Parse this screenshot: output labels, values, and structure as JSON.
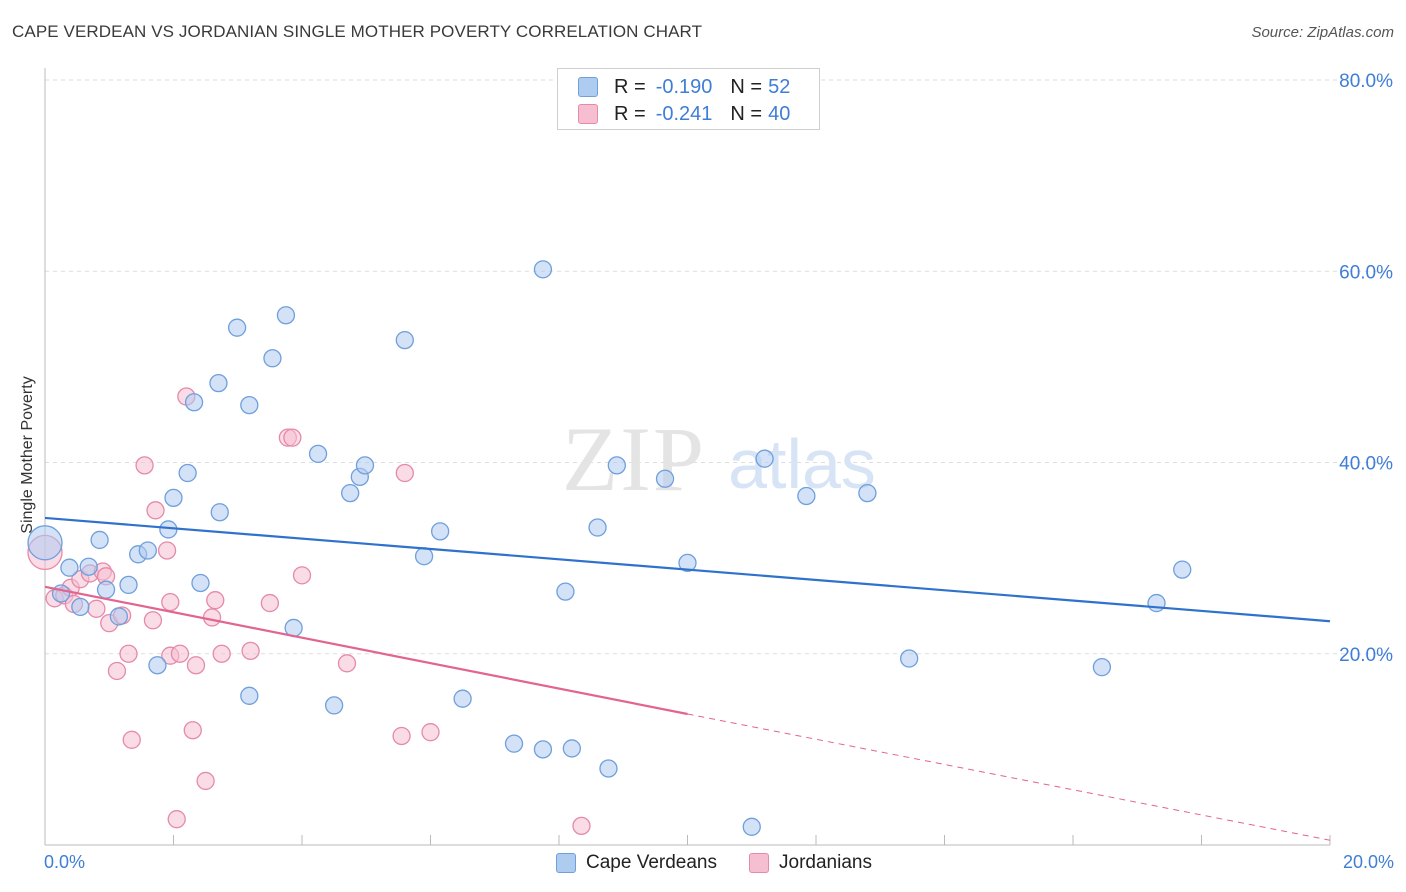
{
  "header": {
    "title": "CAPE VERDEAN VS JORDANIAN SINGLE MOTHER POVERTY CORRELATION CHART",
    "source": "Source: ZipAtlas.com"
  },
  "watermark": {
    "zip": "ZIP",
    "atlas": "atlas"
  },
  "legend": {
    "rows": [
      {
        "r_label": "R =",
        "r_value": "-0.190",
        "n_label": "N =",
        "n_value": "52"
      },
      {
        "r_label": "R =",
        "r_value": "-0.241",
        "n_label": "N =",
        "n_value": "40"
      }
    ]
  },
  "bottom_legend": {
    "series1": "Cape Verdeans",
    "series2": "Jordanians"
  },
  "x_tick_labels": {
    "left": "0.0%",
    "right": "20.0%"
  },
  "colors": {
    "blue_fill": "#aecbf0",
    "blue_stroke": "#6f9fdc",
    "blue_line": "#2f72cc",
    "pink_fill": "#f6bfd1",
    "pink_stroke": "#e58aa8",
    "pink_line": "#e2648f",
    "axis_text": "#3f7ed6",
    "grid": "#dedede"
  },
  "chart_data": {
    "type": "scatter",
    "title": "CAPE VERDEAN VS JORDANIAN SINGLE MOTHER POVERTY CORRELATION CHART",
    "xlabel": "",
    "ylabel": "Single Mother Poverty",
    "xlim": [
      0,
      20
    ],
    "ylim": [
      0,
      80
    ],
    "x_ticks": [
      0,
      20
    ],
    "y_ticks": [
      20,
      40,
      60,
      80
    ],
    "y_tick_labels": [
      "20.0%",
      "40.0%",
      "60.0%",
      "80.0%"
    ],
    "grid": true,
    "legend_position": "top-center",
    "series": [
      {
        "name": "Cape Verdeans",
        "r": -0.19,
        "n": 52,
        "trend": {
          "x": [
            0,
            20
          ],
          "y": [
            34.2,
            23.4
          ]
        },
        "points": [
          {
            "x": 0.0,
            "y": 31.6
          },
          {
            "x": 0.25,
            "y": 26.3
          },
          {
            "x": 0.38,
            "y": 29.0
          },
          {
            "x": 0.55,
            "y": 24.9
          },
          {
            "x": 0.68,
            "y": 29.1
          },
          {
            "x": 0.85,
            "y": 31.9
          },
          {
            "x": 0.95,
            "y": 26.7
          },
          {
            "x": 1.15,
            "y": 23.9
          },
          {
            "x": 1.3,
            "y": 27.2
          },
          {
            "x": 1.45,
            "y": 30.4
          },
          {
            "x": 1.6,
            "y": 30.8
          },
          {
            "x": 1.75,
            "y": 18.8
          },
          {
            "x": 1.92,
            "y": 33.0
          },
          {
            "x": 2.0,
            "y": 36.3
          },
          {
            "x": 2.22,
            "y": 38.9
          },
          {
            "x": 2.32,
            "y": 46.3
          },
          {
            "x": 2.42,
            "y": 27.4
          },
          {
            "x": 2.7,
            "y": 48.3
          },
          {
            "x": 2.72,
            "y": 34.8
          },
          {
            "x": 2.99,
            "y": 54.1
          },
          {
            "x": 3.18,
            "y": 46.0
          },
          {
            "x": 3.18,
            "y": 15.6
          },
          {
            "x": 3.54,
            "y": 50.9
          },
          {
            "x": 3.75,
            "y": 55.4
          },
          {
            "x": 3.87,
            "y": 22.7
          },
          {
            "x": 4.25,
            "y": 40.9
          },
          {
            "x": 4.5,
            "y": 14.6
          },
          {
            "x": 4.75,
            "y": 36.8
          },
          {
            "x": 4.9,
            "y": 38.5
          },
          {
            "x": 4.98,
            "y": 39.7
          },
          {
            "x": 5.6,
            "y": 52.8
          },
          {
            "x": 5.9,
            "y": 30.2
          },
          {
            "x": 6.15,
            "y": 32.8
          },
          {
            "x": 6.5,
            "y": 15.3
          },
          {
            "x": 7.3,
            "y": 10.6
          },
          {
            "x": 7.75,
            "y": 10.0
          },
          {
            "x": 7.75,
            "y": 60.2
          },
          {
            "x": 8.1,
            "y": 26.5
          },
          {
            "x": 8.2,
            "y": 10.1
          },
          {
            "x": 8.6,
            "y": 33.2
          },
          {
            "x": 8.77,
            "y": 8.0
          },
          {
            "x": 8.9,
            "y": 39.7
          },
          {
            "x": 9.65,
            "y": 38.3
          },
          {
            "x": 10.0,
            "y": 29.5
          },
          {
            "x": 11.0,
            "y": 1.9
          },
          {
            "x": 11.2,
            "y": 40.4
          },
          {
            "x": 11.85,
            "y": 36.5
          },
          {
            "x": 12.8,
            "y": 36.8
          },
          {
            "x": 13.45,
            "y": 19.5
          },
          {
            "x": 16.45,
            "y": 18.6
          },
          {
            "x": 17.3,
            "y": 25.3
          },
          {
            "x": 17.7,
            "y": 28.8
          }
        ]
      },
      {
        "name": "Jordanians",
        "r": -0.241,
        "n": 40,
        "trend": {
          "x": [
            0,
            10.0
          ],
          "y": [
            27.0,
            13.7
          ]
        },
        "trend_dashed": {
          "x": [
            10.0,
            20
          ],
          "y": [
            13.7,
            0.5
          ]
        },
        "points": [
          {
            "x": 0.0,
            "y": 30.6
          },
          {
            "x": 0.15,
            "y": 25.8
          },
          {
            "x": 0.3,
            "y": 26.1
          },
          {
            "x": 0.4,
            "y": 26.9
          },
          {
            "x": 0.45,
            "y": 25.2
          },
          {
            "x": 0.55,
            "y": 27.8
          },
          {
            "x": 0.7,
            "y": 28.4
          },
          {
            "x": 0.8,
            "y": 24.7
          },
          {
            "x": 0.9,
            "y": 28.6
          },
          {
            "x": 0.95,
            "y": 28.1
          },
          {
            "x": 1.0,
            "y": 23.2
          },
          {
            "x": 1.12,
            "y": 18.2
          },
          {
            "x": 1.2,
            "y": 24.0
          },
          {
            "x": 1.3,
            "y": 20.0
          },
          {
            "x": 1.35,
            "y": 11.0
          },
          {
            "x": 1.55,
            "y": 39.7
          },
          {
            "x": 1.68,
            "y": 23.5
          },
          {
            "x": 1.72,
            "y": 35.0
          },
          {
            "x": 1.9,
            "y": 30.8
          },
          {
            "x": 1.95,
            "y": 19.8
          },
          {
            "x": 1.95,
            "y": 25.4
          },
          {
            "x": 2.05,
            "y": 2.7
          },
          {
            "x": 2.1,
            "y": 20.0
          },
          {
            "x": 2.2,
            "y": 46.9
          },
          {
            "x": 2.3,
            "y": 12.0
          },
          {
            "x": 2.35,
            "y": 18.8
          },
          {
            "x": 2.5,
            "y": 6.7
          },
          {
            "x": 2.6,
            "y": 23.8
          },
          {
            "x": 2.65,
            "y": 25.6
          },
          {
            "x": 2.75,
            "y": 20.0
          },
          {
            "x": 3.2,
            "y": 20.3
          },
          {
            "x": 3.5,
            "y": 25.3
          },
          {
            "x": 3.78,
            "y": 42.6
          },
          {
            "x": 3.85,
            "y": 42.6
          },
          {
            "x": 4.0,
            "y": 28.2
          },
          {
            "x": 4.7,
            "y": 19.0
          },
          {
            "x": 5.55,
            "y": 11.4
          },
          {
            "x": 5.6,
            "y": 38.9
          },
          {
            "x": 6.0,
            "y": 11.8
          },
          {
            "x": 8.35,
            "y": 2.0
          }
        ]
      }
    ]
  }
}
